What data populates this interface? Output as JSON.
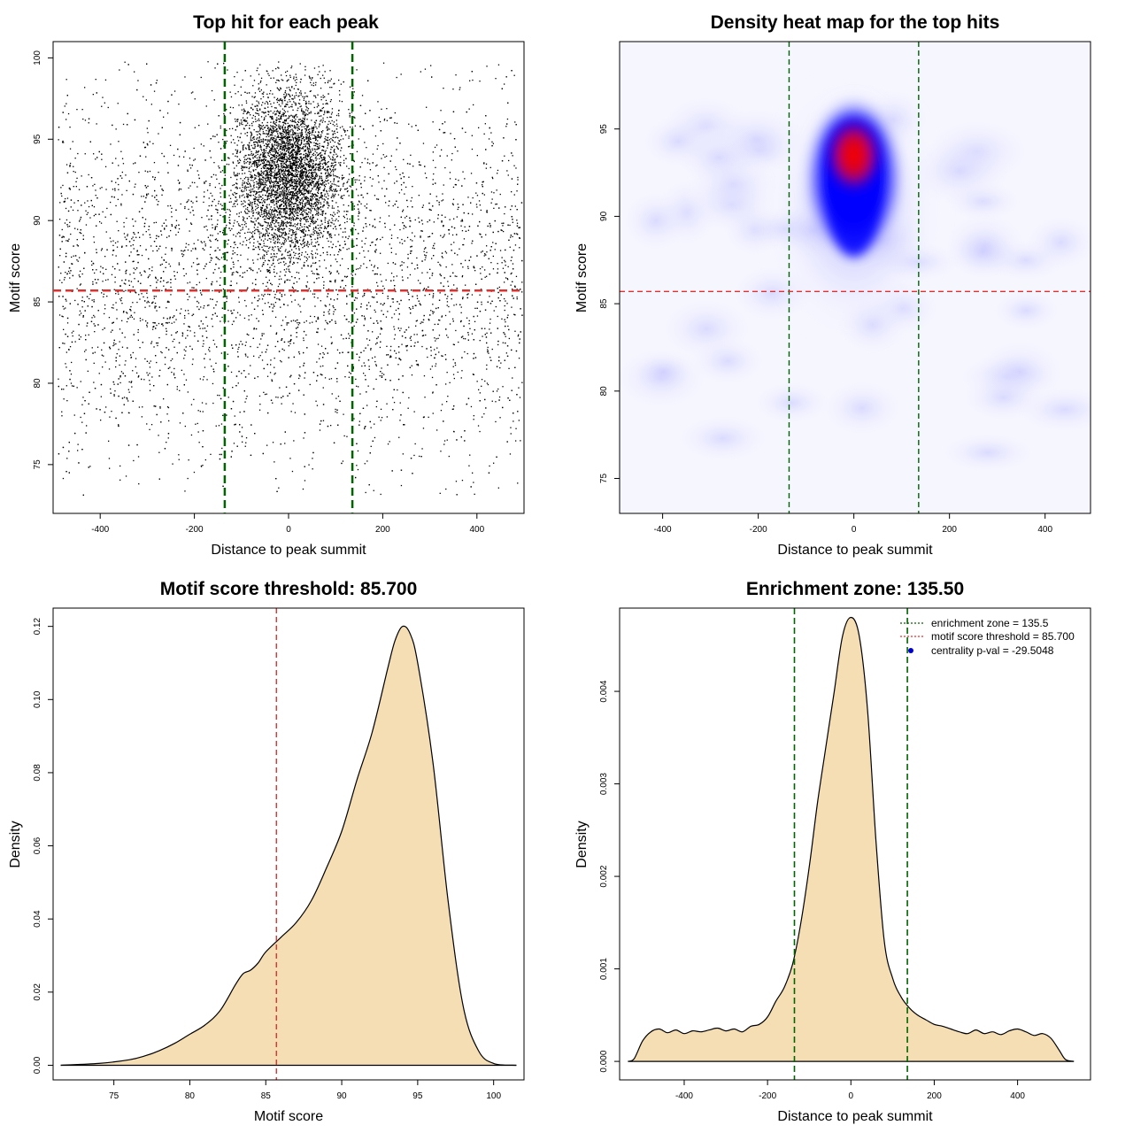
{
  "colors": {
    "points": "#000000",
    "zone_line": "#006400",
    "threshold_line": "#e0312f",
    "density_fill": "#f5deb3",
    "heat_low": "#ffffff",
    "heat_mid": "#0000ff",
    "heat_high": "#ff0000",
    "legend_marker": "#0000cc"
  },
  "chart_data": [
    {
      "id": "scatter",
      "type": "scatter",
      "title": "Top hit for each peak",
      "xlabel": "Distance to peak summit",
      "ylabel": "Motif score",
      "xlim": [
        -500,
        500
      ],
      "ylim": [
        72,
        101
      ],
      "xticks": [
        -400,
        -200,
        0,
        200,
        400
      ],
      "yticks": [
        75,
        80,
        85,
        90,
        95,
        100
      ],
      "vlines": [
        -135.5,
        135.5
      ],
      "hline": 85.7,
      "points_description_only": false,
      "point_count": 9000,
      "background_range_x": [
        -490,
        495
      ],
      "central_cluster": {
        "x_center": 0,
        "x_sd": 55,
        "y_center": 93,
        "y_sd": 2.5
      }
    },
    {
      "id": "heatmap",
      "type": "heatmap",
      "title": "Density heat map for the top hits",
      "xlabel": "Distance to peak summit",
      "ylabel": "Motif score",
      "xlim": [
        -490,
        495
      ],
      "ylim": [
        73,
        100
      ],
      "xticks": [
        -400,
        -200,
        0,
        200,
        400
      ],
      "yticks": [
        75,
        80,
        85,
        90,
        95
      ],
      "vlines": [
        -135.5,
        135.5
      ],
      "hline": 85.7,
      "peak": {
        "x": 0,
        "y": 93.5
      }
    },
    {
      "id": "score-density",
      "type": "area",
      "title": "Motif score threshold: 85.700",
      "xlabel": "Motif score",
      "ylabel": "Density",
      "xlim": [
        71,
        102
      ],
      "ylim": [
        -0.004,
        0.125
      ],
      "xticks": [
        75,
        80,
        85,
        90,
        95,
        100
      ],
      "yticks": [
        "0.00",
        "0.02",
        "0.04",
        "0.06",
        "0.08",
        "0.10",
        "0.12"
      ],
      "vline": 85.7,
      "x": [
        71.5,
        74,
        76,
        77,
        78,
        79,
        80,
        81,
        82,
        83,
        83.5,
        84,
        84.5,
        85,
        86,
        87,
        88,
        89,
        90,
        91,
        92,
        93,
        93.5,
        94,
        94.5,
        95,
        96,
        97,
        98,
        99,
        100,
        101.5
      ],
      "values": [
        0.0,
        0.0005,
        0.0015,
        0.0025,
        0.004,
        0.006,
        0.0085,
        0.011,
        0.015,
        0.022,
        0.025,
        0.026,
        0.028,
        0.031,
        0.035,
        0.039,
        0.045,
        0.054,
        0.064,
        0.078,
        0.091,
        0.108,
        0.116,
        0.12,
        0.118,
        0.11,
        0.083,
        0.045,
        0.016,
        0.004,
        0.0005,
        0.0
      ]
    },
    {
      "id": "distance-density",
      "type": "area",
      "title": "Enrichment zone: 135.50",
      "xlabel": "Distance to peak summit",
      "ylabel": "Density",
      "xlim": [
        -555,
        575
      ],
      "ylim": [
        -0.0002,
        0.0049
      ],
      "xticks": [
        -400,
        -200,
        0,
        200,
        400
      ],
      "yticks": [
        "0.000",
        "0.001",
        "0.002",
        "0.003",
        "0.004"
      ],
      "vlines": [
        -135.5,
        135.5
      ],
      "x": [
        -535,
        -520,
        -500,
        -480,
        -460,
        -440,
        -420,
        -400,
        -380,
        -360,
        -340,
        -320,
        -300,
        -280,
        -260,
        -240,
        -220,
        -200,
        -180,
        -160,
        -140,
        -120,
        -100,
        -80,
        -60,
        -40,
        -20,
        0,
        20,
        40,
        60,
        80,
        100,
        120,
        140,
        160,
        180,
        200,
        220,
        240,
        260,
        280,
        300,
        320,
        340,
        360,
        380,
        400,
        420,
        440,
        460,
        480,
        500,
        515,
        535
      ],
      "values": [
        0.0,
        3e-05,
        0.00022,
        0.00032,
        0.00035,
        0.00031,
        0.00034,
        0.0003,
        0.00033,
        0.00032,
        0.00034,
        0.00036,
        0.00033,
        0.00035,
        0.00032,
        0.00038,
        0.0004,
        0.00048,
        0.00065,
        0.0008,
        0.00105,
        0.0015,
        0.0021,
        0.0028,
        0.0034,
        0.004,
        0.0046,
        0.0048,
        0.0046,
        0.0038,
        0.0024,
        0.0013,
        0.0009,
        0.0007,
        0.00058,
        0.0005,
        0.00045,
        0.0004,
        0.00038,
        0.00035,
        0.00032,
        0.0003,
        0.00034,
        0.0003,
        0.00032,
        0.00029,
        0.00033,
        0.00035,
        0.00032,
        0.00028,
        0.0003,
        0.00025,
        0.00012,
        2e-05,
        0.0
      ],
      "legend": [
        {
          "label": "enrichment zone = 135.5",
          "style": "dotted",
          "color": "#006400"
        },
        {
          "label": "motif score threshold = 85.700",
          "style": "dotted",
          "color": "#e0312f"
        },
        {
          "label": "centrality p-val = -29.5048",
          "style": "point",
          "color": "#0000cc"
        }
      ],
      "legend_position": "top-right"
    }
  ]
}
